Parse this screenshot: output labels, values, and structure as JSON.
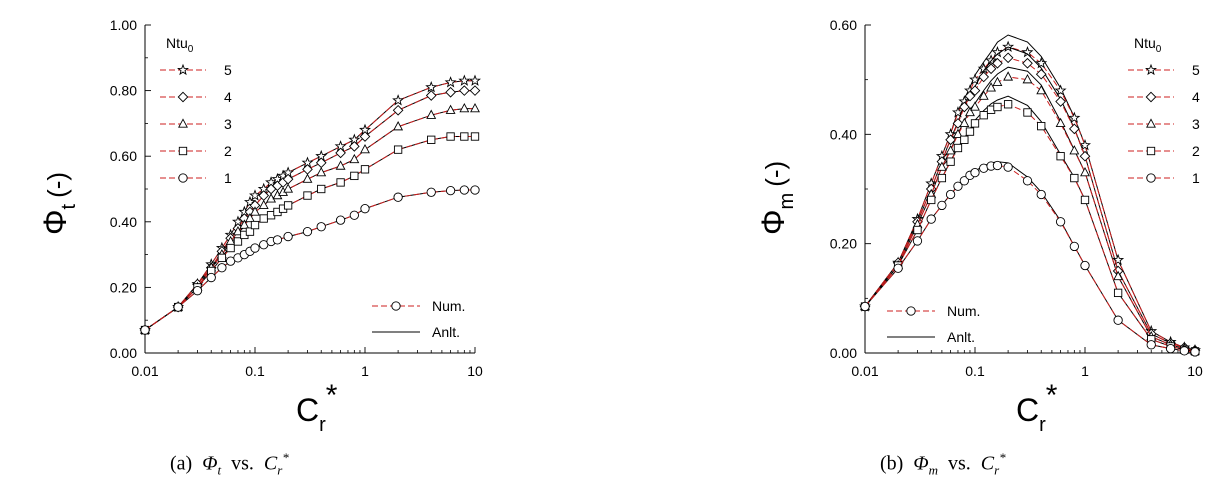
{
  "chart_data": [
    {
      "id": "a",
      "type": "line",
      "ylabel_main": "Φ",
      "ylabel_sub": "t",
      "ylabel_unit": "(-)",
      "xlabel_main": "C",
      "xlabel_sub": "r",
      "xlabel_sup": "*",
      "xscale": "log",
      "xlim": [
        0.01,
        10
      ],
      "ylim": [
        0,
        1.0
      ],
      "xticks": [
        0.01,
        0.1,
        1,
        10
      ],
      "xtick_labels": [
        "0.01",
        "0.1",
        "1",
        "10"
      ],
      "yticks": [
        0,
        0.2,
        0.4,
        0.6,
        0.8,
        1.0
      ],
      "ytick_labels": [
        "0.00",
        "0.20",
        "0.40",
        "0.60",
        "0.80",
        "1.00"
      ],
      "grid": false,
      "legend_title_main": "Ntu",
      "legend_title_sub": "0",
      "legend_position": "top-left",
      "legend2_position": "bottom-right",
      "legend2": [
        "Num.",
        "Anlt."
      ],
      "series": [
        {
          "name": "5",
          "marker": "star",
          "x": [
            0.01,
            0.02,
            0.03,
            0.04,
            0.05,
            0.06,
            0.07,
            0.08,
            0.09,
            0.1,
            0.12,
            0.14,
            0.16,
            0.18,
            0.2,
            0.3,
            0.4,
            0.6,
            0.8,
            1,
            2,
            4,
            6,
            8,
            10
          ],
          "y": [
            0.07,
            0.14,
            0.21,
            0.27,
            0.32,
            0.36,
            0.4,
            0.43,
            0.46,
            0.48,
            0.5,
            0.52,
            0.53,
            0.54,
            0.55,
            0.58,
            0.6,
            0.63,
            0.65,
            0.68,
            0.77,
            0.81,
            0.825,
            0.83,
            0.83
          ]
        },
        {
          "name": "4",
          "marker": "diamond",
          "x": [
            0.01,
            0.02,
            0.03,
            0.04,
            0.05,
            0.06,
            0.07,
            0.08,
            0.09,
            0.1,
            0.12,
            0.14,
            0.16,
            0.18,
            0.2,
            0.3,
            0.4,
            0.6,
            0.8,
            1,
            2,
            4,
            6,
            8,
            10
          ],
          "y": [
            0.07,
            0.14,
            0.21,
            0.26,
            0.31,
            0.35,
            0.38,
            0.41,
            0.43,
            0.45,
            0.48,
            0.5,
            0.51,
            0.52,
            0.53,
            0.56,
            0.58,
            0.61,
            0.63,
            0.66,
            0.74,
            0.785,
            0.795,
            0.8,
            0.8
          ]
        },
        {
          "name": "3",
          "marker": "triangle",
          "x": [
            0.01,
            0.02,
            0.03,
            0.04,
            0.05,
            0.06,
            0.07,
            0.08,
            0.09,
            0.1,
            0.12,
            0.14,
            0.16,
            0.18,
            0.2,
            0.3,
            0.4,
            0.6,
            0.8,
            1,
            2,
            4,
            6,
            8,
            10
          ],
          "y": [
            0.07,
            0.14,
            0.2,
            0.26,
            0.3,
            0.34,
            0.37,
            0.39,
            0.41,
            0.43,
            0.45,
            0.47,
            0.48,
            0.49,
            0.5,
            0.53,
            0.55,
            0.57,
            0.59,
            0.62,
            0.69,
            0.725,
            0.74,
            0.745,
            0.745
          ]
        },
        {
          "name": "2",
          "marker": "square",
          "x": [
            0.01,
            0.02,
            0.03,
            0.04,
            0.05,
            0.06,
            0.07,
            0.08,
            0.09,
            0.1,
            0.12,
            0.14,
            0.16,
            0.18,
            0.2,
            0.3,
            0.4,
            0.6,
            0.8,
            1,
            2,
            4,
            6,
            8,
            10
          ],
          "y": [
            0.07,
            0.14,
            0.2,
            0.25,
            0.29,
            0.32,
            0.34,
            0.36,
            0.37,
            0.39,
            0.41,
            0.42,
            0.43,
            0.44,
            0.45,
            0.48,
            0.5,
            0.52,
            0.54,
            0.56,
            0.62,
            0.65,
            0.66,
            0.66,
            0.66
          ]
        },
        {
          "name": "1",
          "marker": "circle",
          "x": [
            0.01,
            0.02,
            0.03,
            0.04,
            0.05,
            0.06,
            0.07,
            0.08,
            0.09,
            0.1,
            0.12,
            0.14,
            0.16,
            0.2,
            0.3,
            0.4,
            0.6,
            0.8,
            1,
            2,
            4,
            6,
            8,
            10
          ],
          "y": [
            0.07,
            0.14,
            0.19,
            0.23,
            0.26,
            0.28,
            0.29,
            0.3,
            0.31,
            0.32,
            0.33,
            0.34,
            0.345,
            0.355,
            0.37,
            0.385,
            0.405,
            0.42,
            0.44,
            0.475,
            0.49,
            0.495,
            0.497,
            0.497
          ]
        }
      ]
    },
    {
      "id": "b",
      "type": "line",
      "ylabel_main": "Φ",
      "ylabel_sub": "m",
      "ylabel_unit": "(-)",
      "xlabel_main": "C",
      "xlabel_sub": "r",
      "xlabel_sup": "*",
      "xscale": "log",
      "xlim": [
        0.01,
        10
      ],
      "ylim": [
        0,
        0.6
      ],
      "xticks": [
        0.01,
        0.1,
        1,
        10
      ],
      "xtick_labels": [
        "0.01",
        "0.1",
        "1",
        "10"
      ],
      "yticks": [
        0,
        0.2,
        0.4,
        0.6
      ],
      "ytick_labels": [
        "0.00",
        "0.20",
        "0.40",
        "0.60"
      ],
      "grid": false,
      "legend_title_main": "Ntu",
      "legend_title_sub": "0",
      "legend_position": "top-right",
      "legend2_position": "bottom-left",
      "legend2": [
        "Num.",
        "Anlt."
      ],
      "series": [
        {
          "name": "5",
          "marker": "star",
          "x": [
            0.01,
            0.02,
            0.03,
            0.04,
            0.05,
            0.06,
            0.07,
            0.08,
            0.09,
            0.1,
            0.12,
            0.14,
            0.16,
            0.2,
            0.3,
            0.4,
            0.6,
            0.8,
            1,
            2,
            4,
            6,
            8,
            10
          ],
          "y": [
            0.085,
            0.165,
            0.245,
            0.31,
            0.36,
            0.4,
            0.44,
            0.46,
            0.48,
            0.5,
            0.52,
            0.535,
            0.55,
            0.56,
            0.55,
            0.53,
            0.48,
            0.43,
            0.38,
            0.17,
            0.04,
            0.02,
            0.01,
            0.005
          ]
        },
        {
          "name": "4",
          "marker": "diamond",
          "x": [
            0.01,
            0.02,
            0.03,
            0.04,
            0.05,
            0.06,
            0.07,
            0.08,
            0.09,
            0.1,
            0.12,
            0.14,
            0.16,
            0.2,
            0.3,
            0.4,
            0.6,
            0.8,
            1,
            2,
            4,
            6,
            8,
            10
          ],
          "y": [
            0.085,
            0.165,
            0.24,
            0.3,
            0.35,
            0.39,
            0.42,
            0.45,
            0.47,
            0.48,
            0.505,
            0.52,
            0.53,
            0.54,
            0.53,
            0.51,
            0.46,
            0.41,
            0.36,
            0.15,
            0.035,
            0.018,
            0.01,
            0.005
          ]
        },
        {
          "name": "3",
          "marker": "triangle",
          "x": [
            0.01,
            0.02,
            0.03,
            0.04,
            0.05,
            0.06,
            0.07,
            0.08,
            0.09,
            0.1,
            0.12,
            0.14,
            0.16,
            0.2,
            0.3,
            0.4,
            0.6,
            0.8,
            1,
            2,
            4,
            6,
            8,
            10
          ],
          "y": [
            0.085,
            0.16,
            0.235,
            0.29,
            0.34,
            0.37,
            0.4,
            0.42,
            0.44,
            0.45,
            0.47,
            0.485,
            0.495,
            0.505,
            0.5,
            0.48,
            0.42,
            0.37,
            0.33,
            0.14,
            0.03,
            0.015,
            0.008,
            0.004
          ]
        },
        {
          "name": "2",
          "marker": "square",
          "x": [
            0.01,
            0.02,
            0.03,
            0.04,
            0.05,
            0.06,
            0.07,
            0.08,
            0.09,
            0.1,
            0.12,
            0.14,
            0.16,
            0.2,
            0.3,
            0.4,
            0.6,
            0.8,
            1,
            2,
            4,
            6,
            8,
            10
          ],
          "y": [
            0.085,
            0.16,
            0.225,
            0.28,
            0.32,
            0.35,
            0.375,
            0.39,
            0.405,
            0.42,
            0.435,
            0.445,
            0.45,
            0.455,
            0.44,
            0.415,
            0.36,
            0.32,
            0.28,
            0.11,
            0.025,
            0.012,
            0.006,
            0.003
          ]
        },
        {
          "name": "1",
          "marker": "circle",
          "x": [
            0.01,
            0.02,
            0.03,
            0.04,
            0.05,
            0.06,
            0.07,
            0.08,
            0.09,
            0.1,
            0.12,
            0.14,
            0.16,
            0.2,
            0.3,
            0.4,
            0.6,
            0.8,
            1,
            2,
            4,
            6,
            8,
            10
          ],
          "y": [
            0.085,
            0.155,
            0.205,
            0.245,
            0.27,
            0.29,
            0.305,
            0.315,
            0.325,
            0.33,
            0.338,
            0.342,
            0.343,
            0.34,
            0.315,
            0.29,
            0.24,
            0.195,
            0.16,
            0.06,
            0.015,
            0.008,
            0.004,
            0.002
          ]
        }
      ]
    }
  ],
  "captions": {
    "a": {
      "label": "(a)",
      "sym": "Φ",
      "sub": "t",
      "vs": "vs.",
      "c": "C",
      "csub": "r",
      "csup": "*"
    },
    "b": {
      "label": "(b)",
      "sym": "Φ",
      "sub": "m",
      "vs": "vs.",
      "c": "C",
      "csub": "r",
      "csup": "*"
    }
  },
  "colors": {
    "numerical": "#cc1f1f",
    "analytical": "#000000",
    "axis": "#000000"
  }
}
